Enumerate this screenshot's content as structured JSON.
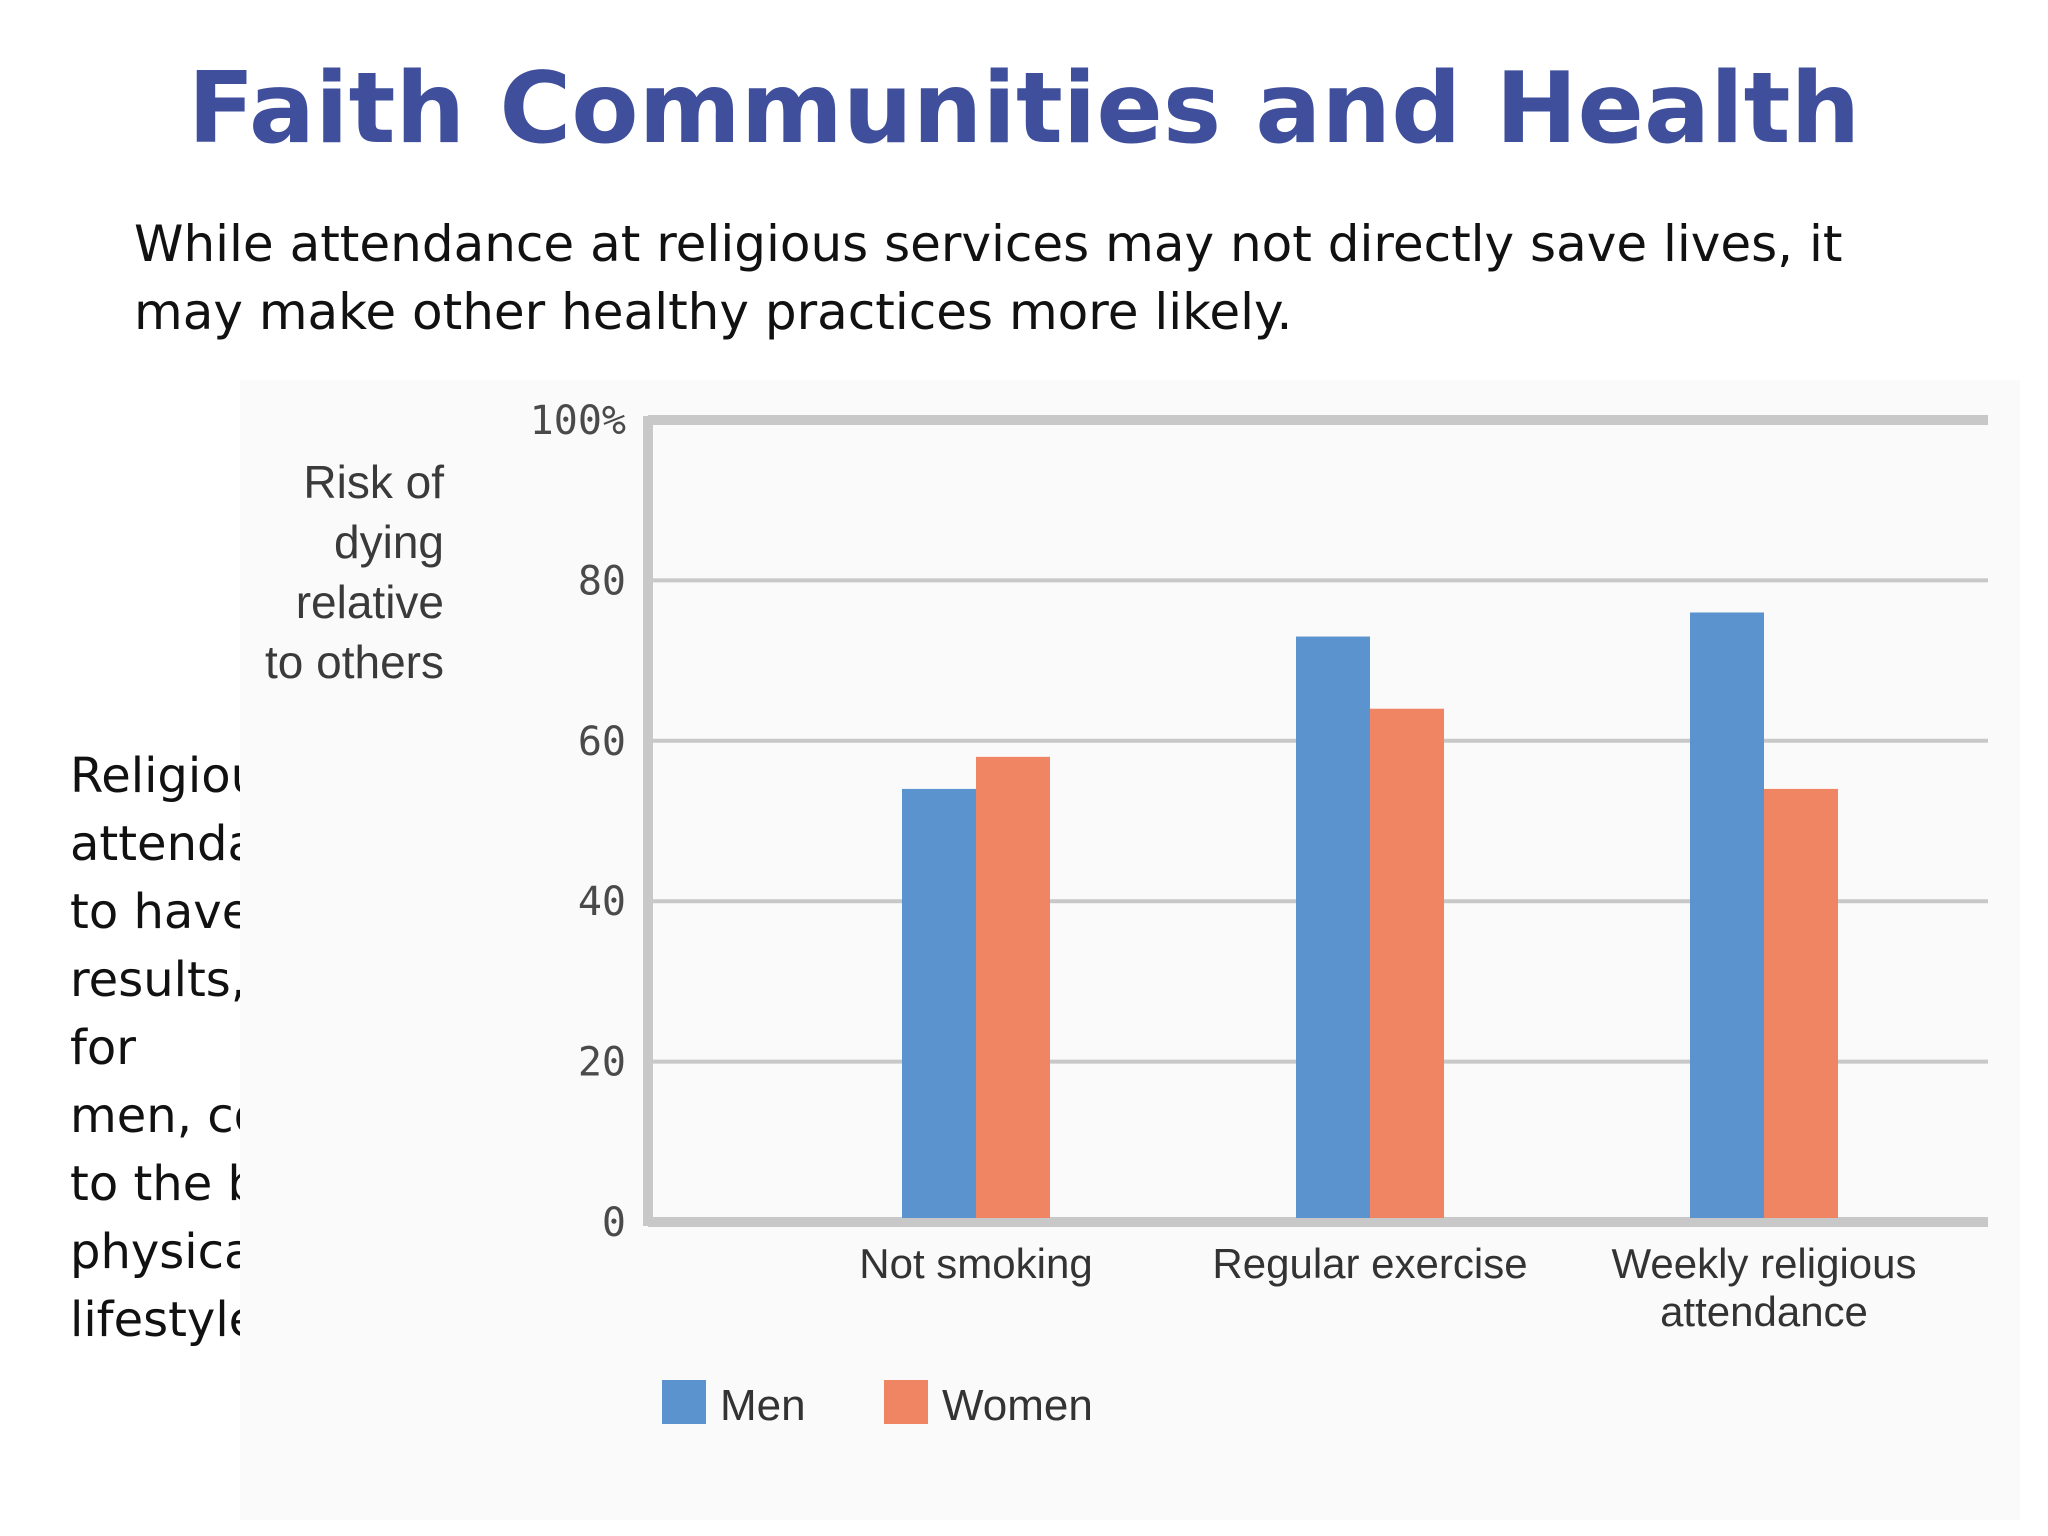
{
  "title": "Faith Communities and Health",
  "intro": "While attendance at religious services may not directly save lives, it may make other healthy practices more likely.",
  "side_note": "Religious\nattendance seems\nto have\nresults, especially\nfor\nmen, comparable\nto the benefit of\nphysically healthy\nlifestyle choices.",
  "colors": {
    "title": "#3f4f9c",
    "men": "#5b93cf",
    "women": "#ef8563",
    "grid": "#c8c8c8"
  },
  "chart_data": {
    "type": "bar",
    "ylabel_lines": [
      "Risk of",
      "dying",
      "relative",
      "to others"
    ],
    "ylim": [
      0,
      100
    ],
    "yticks": [
      {
        "value": 100,
        "label": "100%"
      },
      {
        "value": 80,
        "label": "80"
      },
      {
        "value": 60,
        "label": "60"
      },
      {
        "value": 40,
        "label": "40"
      },
      {
        "value": 20,
        "label": "20"
      },
      {
        "value": 0,
        "label": "0"
      }
    ],
    "categories": [
      [
        "Not smoking"
      ],
      [
        "Regular exercise"
      ],
      [
        "Weekly religious",
        "attendance"
      ]
    ],
    "series": [
      {
        "name": "Men",
        "color": "#5b93cf",
        "values": [
          54,
          73,
          76
        ]
      },
      {
        "name": "Women",
        "color": "#ef8563",
        "values": [
          58,
          64,
          54
        ]
      }
    ],
    "grid": true,
    "legend": "bottom-left"
  }
}
